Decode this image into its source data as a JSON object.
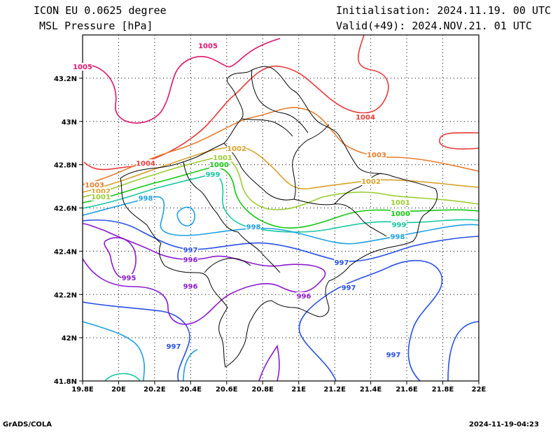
{
  "header": {
    "model": "ICON EU 0.0625 degree",
    "field": "MSL Pressure [hPa]",
    "init": "Initialisation: 2024.11.19. 00 UTC",
    "valid": "Valid(+49): 2024.NOV.21. 01 UTC"
  },
  "axes": {
    "lon_ticks": [
      "19.8E",
      "20E",
      "20.2E",
      "20.4E",
      "20.6E",
      "20.8E",
      "21E",
      "21.2E",
      "21.4E",
      "21.6E",
      "21.8E",
      "22E"
    ],
    "lat_ticks": [
      "41.8N",
      "42N",
      "42.2N",
      "42.4N",
      "42.6N",
      "42.8N",
      "43N",
      "43.2N"
    ],
    "lon_range": [
      19.8,
      22.0
    ],
    "lat_range": [
      41.8,
      43.4
    ]
  },
  "contour_labels": [
    {
      "text": "1005",
      "color": "#e0156d"
    },
    {
      "text": "1005",
      "color": "#e0156d"
    },
    {
      "text": "1004",
      "color": "#e8393a"
    },
    {
      "text": "1004",
      "color": "#e8393a"
    },
    {
      "text": "1003",
      "color": "#e87d2d"
    },
    {
      "text": "1003",
      "color": "#e87d2d"
    },
    {
      "text": "1002",
      "color": "#d9a12b"
    },
    {
      "text": "1002",
      "color": "#d9a12b"
    },
    {
      "text": "1002",
      "color": "#d9a12b"
    },
    {
      "text": "1001",
      "color": "#9acd32"
    },
    {
      "text": "1001",
      "color": "#9acd32"
    },
    {
      "text": "1001",
      "color": "#9acd32"
    },
    {
      "text": "1000",
      "color": "#12c812"
    },
    {
      "text": "1000",
      "color": "#12c812"
    },
    {
      "text": "999",
      "color": "#14c8a0"
    },
    {
      "text": "999",
      "color": "#14c8a0"
    },
    {
      "text": "998",
      "color": "#1ea0e6"
    },
    {
      "text": "998",
      "color": "#1ea0e6"
    },
    {
      "text": "998",
      "color": "#1ea0e6"
    },
    {
      "text": "997",
      "color": "#2850e6"
    },
    {
      "text": "997",
      "color": "#2850e6"
    },
    {
      "text": "997",
      "color": "#2850e6"
    },
    {
      "text": "997",
      "color": "#2850e6"
    },
    {
      "text": "997",
      "color": "#2850e6"
    },
    {
      "text": "996",
      "color": "#8a1ad0"
    },
    {
      "text": "996",
      "color": "#8a1ad0"
    },
    {
      "text": "996",
      "color": "#8a1ad0"
    },
    {
      "text": "995",
      "color": "#8a1ad0"
    }
  ],
  "footer": {
    "left": "GrADS/COLA",
    "right": "2024-11-19-04:23"
  }
}
